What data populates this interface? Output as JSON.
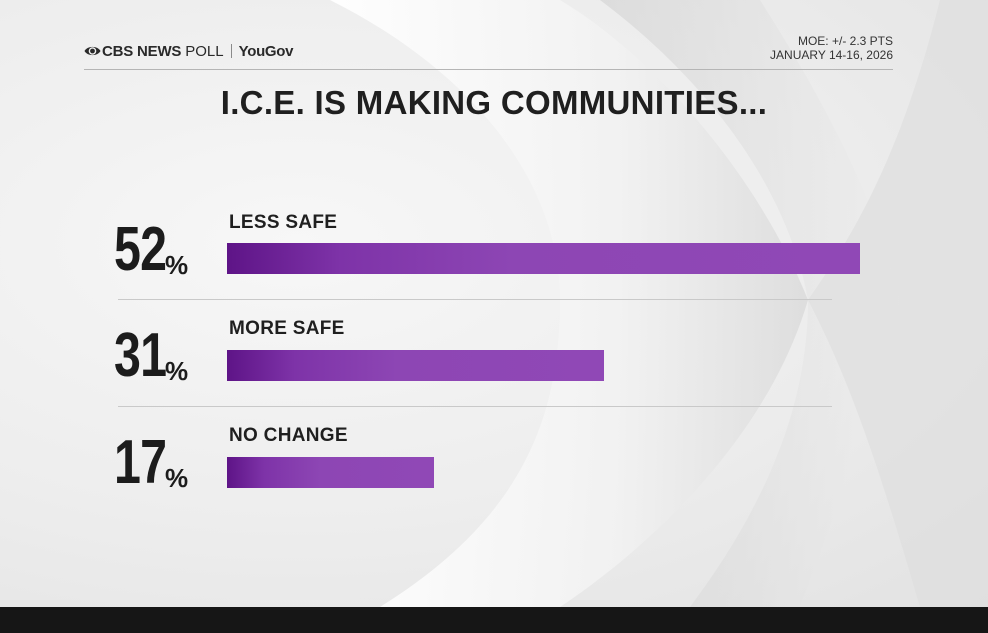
{
  "brand": {
    "network": "CBS NEWS",
    "poll_word": "POLL",
    "partner": "YouGov"
  },
  "meta": {
    "moe": "MOE: +/- 2.3 PTS",
    "dates": "JANUARY 14-16, 2026"
  },
  "colors": {
    "bar_dark": "#5e1487",
    "bar_light": "#9048b6",
    "text": "#1f1f1f",
    "background": "#ededed"
  },
  "chart_data": {
    "type": "bar",
    "orientation": "horizontal",
    "title": "I.C.E. IS MAKING COMMUNITIES...",
    "categories": [
      "LESS SAFE",
      "MORE SAFE",
      "NO CHANGE"
    ],
    "values": [
      52,
      31,
      17
    ],
    "value_labels": [
      "52",
      "31",
      "17"
    ],
    "value_suffix": "%",
    "xlim": [
      0,
      52
    ],
    "grid": false,
    "legend": "none"
  }
}
